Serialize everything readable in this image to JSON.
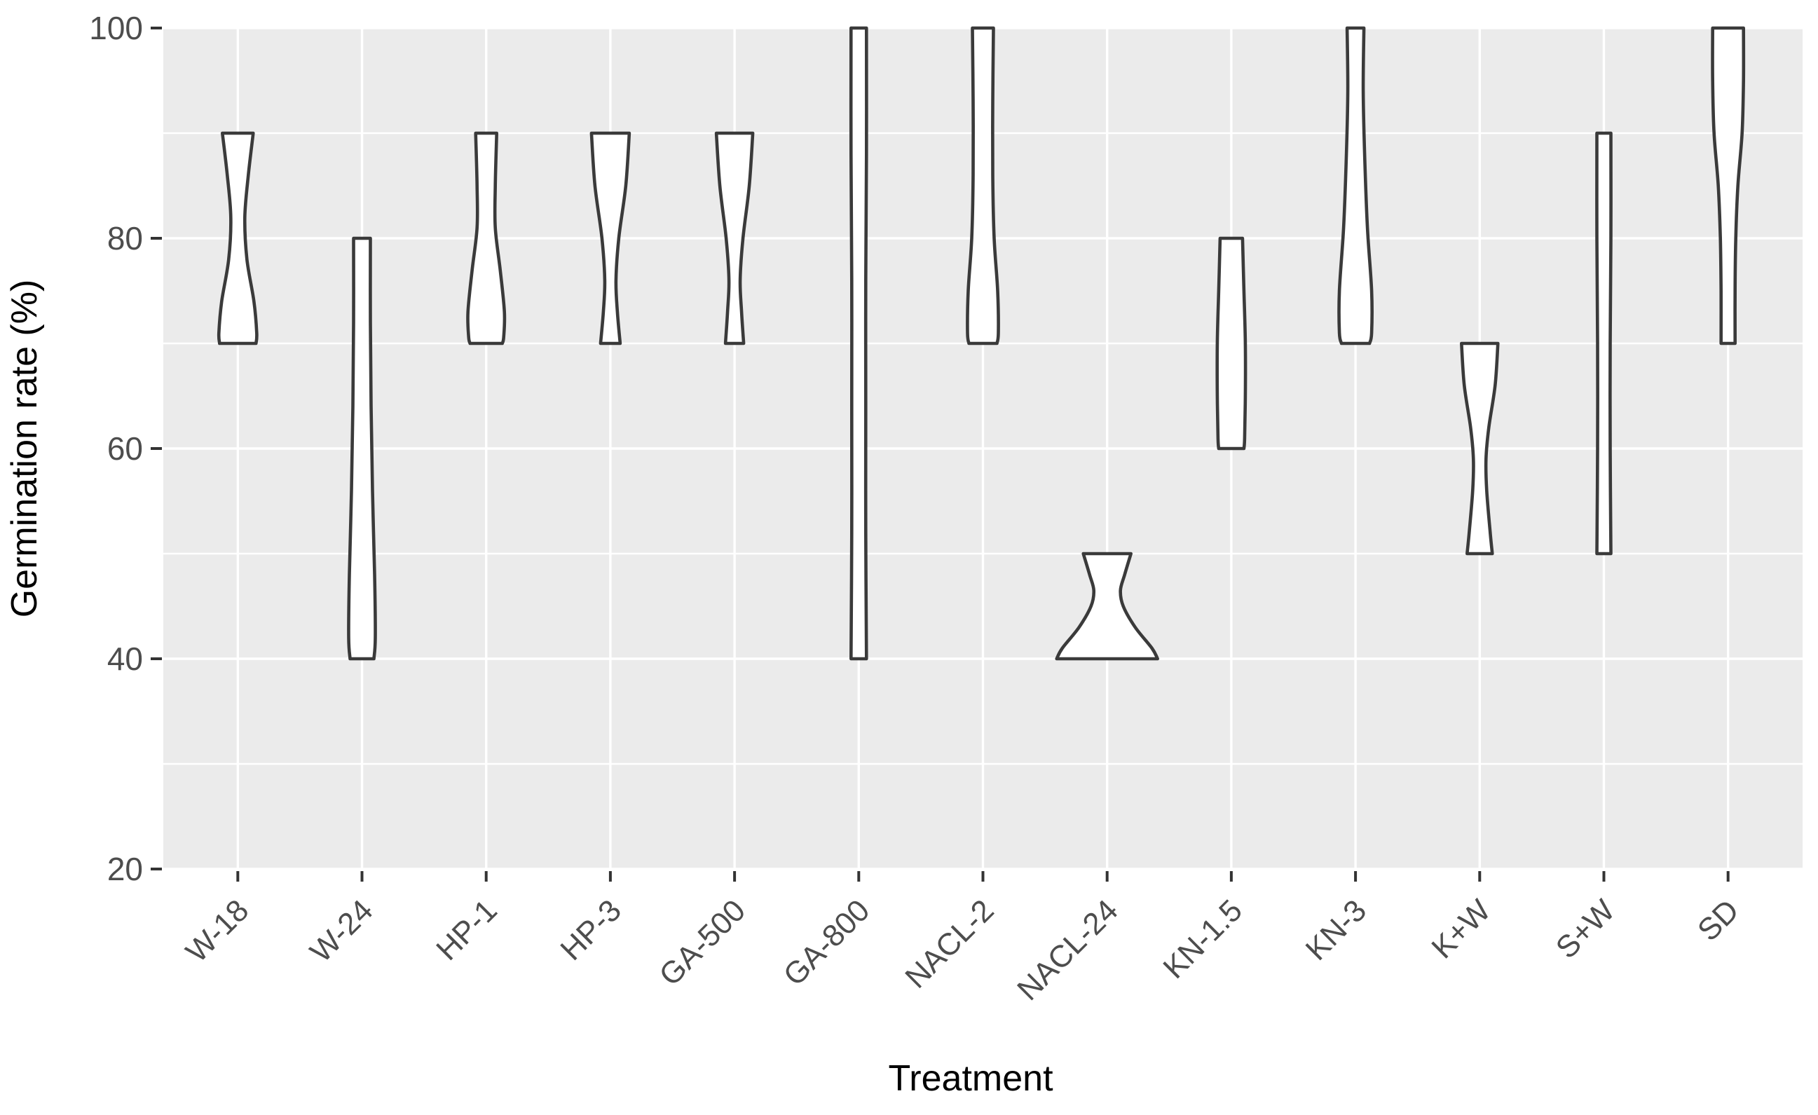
{
  "figure": {
    "background_color": "#ffffff",
    "panel_color": "#ebebeb",
    "grid_color": "#ffffff",
    "violin_fill": "#ffffff",
    "violin_stroke": "#3a3a3a",
    "tick_mark_color": "#333333",
    "tick_label_color": "#4d4d4d",
    "axis_title_color": "#000000"
  },
  "chart_data": {
    "type": "violin",
    "title": "",
    "xlabel": "Treatment",
    "ylabel": "Germination rate (%)",
    "ylim": [
      20,
      100
    ],
    "yticks": [
      20,
      40,
      60,
      80,
      100
    ],
    "yticks_minor": [
      30,
      50,
      70,
      90
    ],
    "grid": "major-and-minor-white-on-gray",
    "legend": "none",
    "categories": [
      "W-18",
      "W-24",
      "HP-1",
      "HP-3",
      "GA-500",
      "GA-800",
      "NACL-2",
      "NACL-24",
      "KN-1.5",
      "KN-3",
      "K+W",
      "S+W",
      "SD"
    ],
    "series": [
      {
        "name": "W-18",
        "min": 70,
        "max": 90,
        "profile": [
          [
            90,
            22
          ],
          [
            86,
            15
          ],
          [
            82,
            10
          ],
          [
            78,
            13
          ],
          [
            74,
            23
          ],
          [
            71,
            27
          ],
          [
            70,
            26
          ]
        ]
      },
      {
        "name": "W-24",
        "min": 40,
        "max": 80,
        "profile": [
          [
            80,
            12
          ],
          [
            72,
            12
          ],
          [
            64,
            13
          ],
          [
            56,
            15
          ],
          [
            48,
            18
          ],
          [
            42,
            19
          ],
          [
            40,
            17
          ]
        ]
      },
      {
        "name": "HP-1",
        "min": 70,
        "max": 90,
        "profile": [
          [
            90,
            15
          ],
          [
            85,
            13
          ],
          [
            81,
            13
          ],
          [
            77,
            20
          ],
          [
            73,
            26
          ],
          [
            70.6,
            25
          ],
          [
            70,
            23
          ]
        ]
      },
      {
        "name": "HP-3",
        "min": 70,
        "max": 90,
        "profile": [
          [
            90,
            27
          ],
          [
            85,
            22
          ],
          [
            80,
            12
          ],
          [
            76,
            8
          ],
          [
            73,
            10
          ],
          [
            70,
            14
          ]
        ]
      },
      {
        "name": "GA-500",
        "min": 70,
        "max": 90,
        "profile": [
          [
            90,
            26
          ],
          [
            85,
            21
          ],
          [
            80,
            12
          ],
          [
            76,
            8
          ],
          [
            73,
            10
          ],
          [
            70,
            13
          ]
        ]
      },
      {
        "name": "GA-800",
        "min": 40,
        "max": 100,
        "profile": [
          [
            100,
            11
          ],
          [
            88,
            11
          ],
          [
            76,
            10
          ],
          [
            64,
            10
          ],
          [
            52,
            10
          ],
          [
            40,
            11
          ]
        ]
      },
      {
        "name": "NACL-2",
        "min": 70,
        "max": 100,
        "profile": [
          [
            100,
            15
          ],
          [
            93,
            14
          ],
          [
            86,
            14
          ],
          [
            80,
            16
          ],
          [
            75,
            21
          ],
          [
            71,
            22
          ],
          [
            70,
            20
          ]
        ]
      },
      {
        "name": "NACL-24",
        "min": 40,
        "max": 50,
        "profile": [
          [
            50,
            34
          ],
          [
            48,
            25
          ],
          [
            46.5,
            19
          ],
          [
            45,
            23
          ],
          [
            43,
            40
          ],
          [
            41,
            64
          ],
          [
            40,
            72
          ]
        ]
      },
      {
        "name": "KN-1.5",
        "min": 60,
        "max": 80,
        "profile": [
          [
            80,
            16
          ],
          [
            75,
            18
          ],
          [
            70,
            20
          ],
          [
            65,
            20
          ],
          [
            61,
            19
          ],
          [
            60,
            18
          ]
        ]
      },
      {
        "name": "KN-3",
        "min": 70,
        "max": 100,
        "profile": [
          [
            100,
            12
          ],
          [
            94,
            11
          ],
          [
            88,
            13
          ],
          [
            81,
            17
          ],
          [
            75,
            23
          ],
          [
            71,
            23
          ],
          [
            70,
            20
          ]
        ]
      },
      {
        "name": "K+W",
        "min": 50,
        "max": 70,
        "profile": [
          [
            70,
            26
          ],
          [
            66,
            22
          ],
          [
            62,
            13
          ],
          [
            59,
            9
          ],
          [
            56,
            10
          ],
          [
            52,
            15
          ],
          [
            50,
            18
          ]
        ]
      },
      {
        "name": "S+W",
        "min": 50,
        "max": 90,
        "profile": [
          [
            90,
            10
          ],
          [
            80,
            10
          ],
          [
            70,
            9
          ],
          [
            60,
            9
          ],
          [
            50,
            10
          ]
        ]
      },
      {
        "name": "SD",
        "min": 70,
        "max": 100,
        "profile": [
          [
            100,
            22
          ],
          [
            95,
            22
          ],
          [
            90,
            20
          ],
          [
            85,
            14
          ],
          [
            80,
            11
          ],
          [
            75,
            10
          ],
          [
            70,
            10
          ]
        ]
      }
    ]
  }
}
